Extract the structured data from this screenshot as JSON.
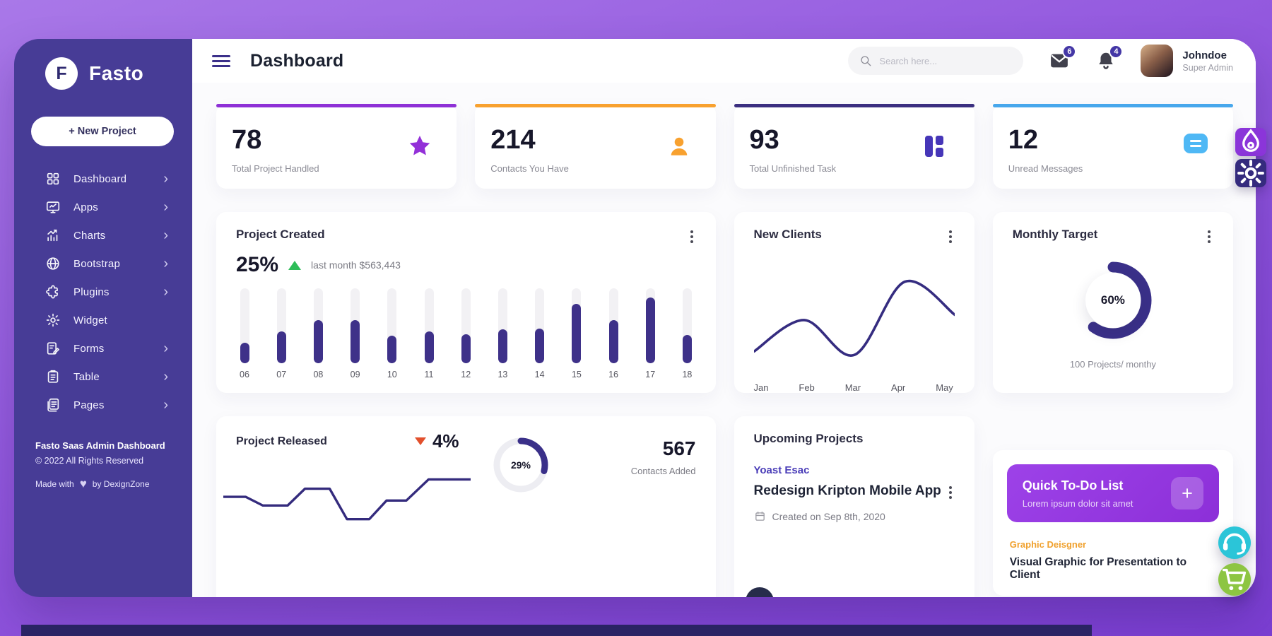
{
  "app": {
    "brand": "Fasto",
    "brand_initial": "F"
  },
  "sidebar": {
    "new_project_label": "+ New Project",
    "items": [
      {
        "label": "Dashboard",
        "icon": "dashboard-grid-icon",
        "chevron": true
      },
      {
        "label": "Apps",
        "icon": "apps-monitor-icon",
        "chevron": true
      },
      {
        "label": "Charts",
        "icon": "charts-icon",
        "chevron": true
      },
      {
        "label": "Bootstrap",
        "icon": "globe-icon",
        "chevron": true
      },
      {
        "label": "Plugins",
        "icon": "puzzle-icon",
        "chevron": true
      },
      {
        "label": "Widget",
        "icon": "gear-icon",
        "chevron": false
      },
      {
        "label": "Forms",
        "icon": "form-pencil-icon",
        "chevron": true
      },
      {
        "label": "Table",
        "icon": "clipboard-icon",
        "chevron": true
      },
      {
        "label": "Pages",
        "icon": "pages-icon",
        "chevron": true
      }
    ],
    "footer": {
      "line1": "Fasto Saas Admin Dashboard",
      "line2": "© 2022 All Rights Reserved",
      "made_with": "Made with",
      "heart": "♥",
      "by": "by DexignZone"
    }
  },
  "header": {
    "title": "Dashboard",
    "search_placeholder": "Search here...",
    "messages_badge": "6",
    "notifications_badge": "4",
    "user": {
      "name": "Johndoe",
      "role": "Super Admin"
    }
  },
  "stats": [
    {
      "value": "78",
      "label": "Total Project Handled",
      "accent": "#8e30d6",
      "icon": "star-icon"
    },
    {
      "value": "214",
      "label": "Contacts You Have",
      "accent": "#f8a12f",
      "icon": "person-icon"
    },
    {
      "value": "93",
      "label": "Total Unfinished Task",
      "accent": "#3b2f80",
      "icon": "blocks-icon"
    },
    {
      "value": "12",
      "label": "Unread Messages",
      "accent": "#47a7ec",
      "icon": "chat-bubble-icon"
    }
  ],
  "project_created": {
    "title": "Project Created",
    "percent": "25%",
    "note": "last month $563,443"
  },
  "new_clients": {
    "title": "New Clients"
  },
  "monthly_target": {
    "title": "Monthly Target",
    "percent": "60%",
    "caption": "100 Projects/ monthy"
  },
  "project_released": {
    "title": "Project Released",
    "percent": "4%",
    "donut_label": "29%",
    "contacts_value": "567",
    "contacts_label": "Contacts Added"
  },
  "upcoming": {
    "title": "Upcoming Projects",
    "tag": "Yoast Esac",
    "project": "Redesign Kripton Mobile App",
    "created": "Created on Sep 8th, 2020"
  },
  "todo": {
    "title": "Quick To-Do List",
    "subtitle": "Lorem ipsum dolor sit amet",
    "add_label": "+"
  },
  "task": {
    "category": "Graphic Deisgner",
    "title": "Visual Graphic for Presentation to Client"
  },
  "chart_data": [
    {
      "id": "project_created_bars",
      "type": "bar",
      "title": "Project Created",
      "categories": [
        "06",
        "07",
        "08",
        "09",
        "10",
        "11",
        "12",
        "13",
        "14",
        "15",
        "16",
        "17",
        "18"
      ],
      "values": [
        27,
        42,
        58,
        58,
        37,
        42,
        39,
        45,
        46,
        79,
        58,
        88,
        38
      ],
      "ylim": [
        0,
        100
      ],
      "ylabel": "",
      "xlabel": "",
      "note": "values are percent of bar track height; filled indigo on light track"
    },
    {
      "id": "new_clients_line",
      "type": "line",
      "title": "New Clients",
      "x": [
        "Jan",
        "Feb",
        "Mar",
        "Apr",
        "May"
      ],
      "values": [
        10,
        46,
        6,
        90,
        52
      ],
      "ylim": [
        0,
        100
      ],
      "grid": false,
      "color": "#352c80"
    },
    {
      "id": "monthly_target_donut",
      "type": "pie",
      "title": "Monthly Target",
      "value": 60,
      "label": "60%",
      "caption": "100 Projects/ monthy",
      "color": "#3a3089"
    },
    {
      "id": "project_released_steps",
      "type": "line",
      "title": "Project Released",
      "points": [
        [
          0,
          42
        ],
        [
          9,
          42
        ],
        [
          16,
          28
        ],
        [
          26,
          28
        ],
        [
          33,
          55
        ],
        [
          43,
          55
        ],
        [
          50,
          6
        ],
        [
          59,
          6
        ],
        [
          66,
          36
        ],
        [
          74,
          36
        ],
        [
          83,
          70
        ],
        [
          100,
          70
        ]
      ],
      "ylim": [
        0,
        100
      ],
      "color": "#342b7d"
    },
    {
      "id": "contacts_added_donut",
      "type": "pie",
      "value": 29,
      "label": "29%",
      "color": "#3a3089"
    }
  ]
}
